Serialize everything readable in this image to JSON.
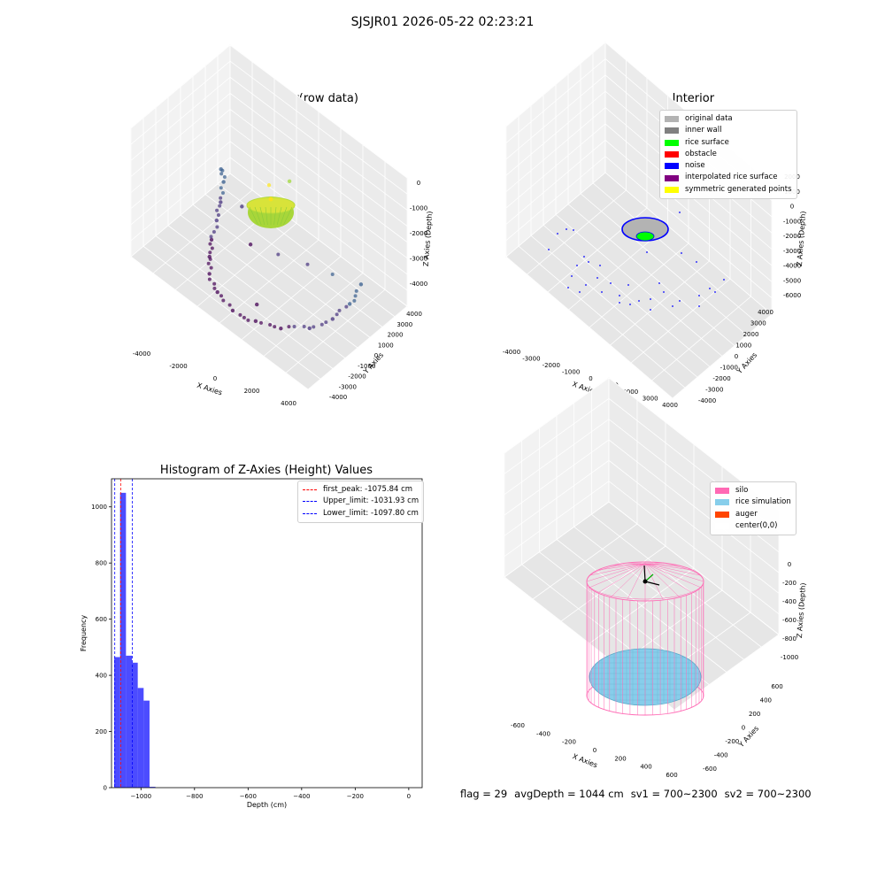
{
  "figure": {
    "suptitle": "SJSJR01 2026-05-22 02:23:21",
    "footer": {
      "flag": "flag = 29",
      "avg_depth": "avgDepth = 1044 cm",
      "sv1": "sv1 = 700~2300",
      "sv2": "sv2 = 700~2300"
    }
  },
  "chart_data": [
    {
      "type": "scatter",
      "projection": "3d",
      "title": "3D Plot of Silo Interior(row data)",
      "xlabel": "X Axies",
      "ylabel": "Y Axies",
      "zlabel": "Z Axies (Depth)",
      "xticks": [
        "-4000",
        "-2000",
        "0",
        "2000",
        "4000"
      ],
      "yticks": [
        "-4000",
        "-3000",
        "-2000",
        "-1000",
        "0",
        "1000",
        "2000",
        "3000",
        "4000"
      ],
      "zticks": [
        "0",
        "-1000",
        "-2000",
        "-3000",
        "-4000"
      ],
      "grid": true,
      "colormap": "viridis by depth",
      "series": [
        {
          "points": [
            [
              -3900,
              2600,
              -3400
            ],
            [
              -3600,
              2300,
              -3600
            ],
            [
              -3300,
              1500,
              -3900
            ],
            [
              -3000,
              600,
              -4100
            ],
            [
              -2700,
              -400,
              -4300
            ],
            [
              -2300,
              -1300,
              -4400
            ],
            [
              -1800,
              -2200,
              -4450
            ],
            [
              -1000,
              -2900,
              -4450
            ],
            [
              0,
              -3300,
              -4450
            ],
            [
              1000,
              -3000,
              -4400
            ],
            [
              2000,
              -2500,
              -4300
            ],
            [
              2900,
              -1500,
              -4150
            ],
            [
              3400,
              -300,
              -3950
            ],
            [
              3600,
              900,
              -3700
            ],
            [
              3500,
              2100,
              -3450
            ],
            [
              -1500,
              1000,
              -4300
            ],
            [
              500,
              -2000,
              -4400
            ],
            [
              -2500,
              2000,
              -3800
            ],
            [
              200,
              1500,
              -1300
            ],
            [
              0,
              0,
              -1050
            ]
          ]
        }
      ]
    },
    {
      "type": "scatter",
      "projection": "3d",
      "title": "3D classify of Silo Interior",
      "xlabel": "X Axies",
      "ylabel": "Y Axies",
      "zlabel": "Z Axies (Depth)",
      "xticks": [
        "-4000",
        "-3000",
        "-2000",
        "-1000",
        "0",
        "1000",
        "2000",
        "3000",
        "4000"
      ],
      "yticks": [
        "-4000",
        "-3000",
        "-2000",
        "-1000",
        "0",
        "1000",
        "2000",
        "3000",
        "4000"
      ],
      "zticks": [
        "2000",
        "1000",
        "0",
        "-1000",
        "-2000",
        "-3000",
        "-4000",
        "-5000",
        "-6000"
      ],
      "grid": true,
      "legend_position": "top-right",
      "legend": [
        {
          "name": "original data",
          "color": "#b3b3b3"
        },
        {
          "name": "inner wall",
          "color": "#808080"
        },
        {
          "name": "rice surface",
          "color": "#00ff00"
        },
        {
          "name": "obstacle",
          "color": "#ff0000"
        },
        {
          "name": "noise",
          "color": "#0000ff"
        },
        {
          "name": "interpolated rice surface",
          "color": "#800080"
        },
        {
          "name": "symmetric generated points",
          "color": "#ffff00"
        }
      ]
    },
    {
      "type": "bar",
      "title": "Histogram of Z-Axies (Height) Values",
      "xlabel": "Depth (cm)",
      "ylabel": "Frequency",
      "xlim": [
        -1110,
        50
      ],
      "ylim": [
        0,
        1100
      ],
      "xticks": [
        -1000,
        -800,
        -600,
        -400,
        -200,
        0
      ],
      "yticks": [
        0,
        200,
        400,
        600,
        800,
        1000
      ],
      "bar_color": "#0000ff",
      "bins": [
        {
          "x0": -1100,
          "x1": -1078,
          "value": 465
        },
        {
          "x0": -1078,
          "x1": -1056,
          "value": 1050
        },
        {
          "x0": -1056,
          "x1": -1034,
          "value": 470
        },
        {
          "x0": -1034,
          "x1": -1012,
          "value": 445
        },
        {
          "x0": -1012,
          "x1": -990,
          "value": 355
        },
        {
          "x0": -990,
          "x1": -968,
          "value": 310
        },
        {
          "x0": -968,
          "x1": -946,
          "value": 3
        }
      ],
      "vlines": [
        {
          "x": -1075.84,
          "label": "first_peak: -1075.84 cm",
          "color": "#ff0000"
        },
        {
          "x": -1031.93,
          "label": "Upper_limit: -1031.93 cm",
          "color": "#0000ff"
        },
        {
          "x": -1097.8,
          "label": "Lower_limit: -1097.80 cm",
          "color": "#0000ff"
        }
      ],
      "legend_position": "top-right"
    },
    {
      "type": "scatter",
      "projection": "3d",
      "title": "3D simulation of Silo Interior",
      "xlabel": "X Axies",
      "ylabel": "Y Axies",
      "zlabel": "Z Axies (Depth)",
      "xticks": [
        "-600",
        "-400",
        "-200",
        "0",
        "200",
        "400",
        "600"
      ],
      "yticks": [
        "-600",
        "-400",
        "-200",
        "0",
        "200",
        "400",
        "600"
      ],
      "zticks": [
        "0",
        "-200",
        "-400",
        "-600",
        "-800",
        "-1000"
      ],
      "grid": true,
      "legend_position": "top-right",
      "legend": [
        {
          "name": "silo",
          "color": "#ff69b4"
        },
        {
          "name": "rice simulation",
          "color": "#87ceeb"
        },
        {
          "name": "auger",
          "color": "#ff4500"
        },
        {
          "name": "center(0,0)",
          "color": "#ffffff"
        }
      ]
    }
  ]
}
